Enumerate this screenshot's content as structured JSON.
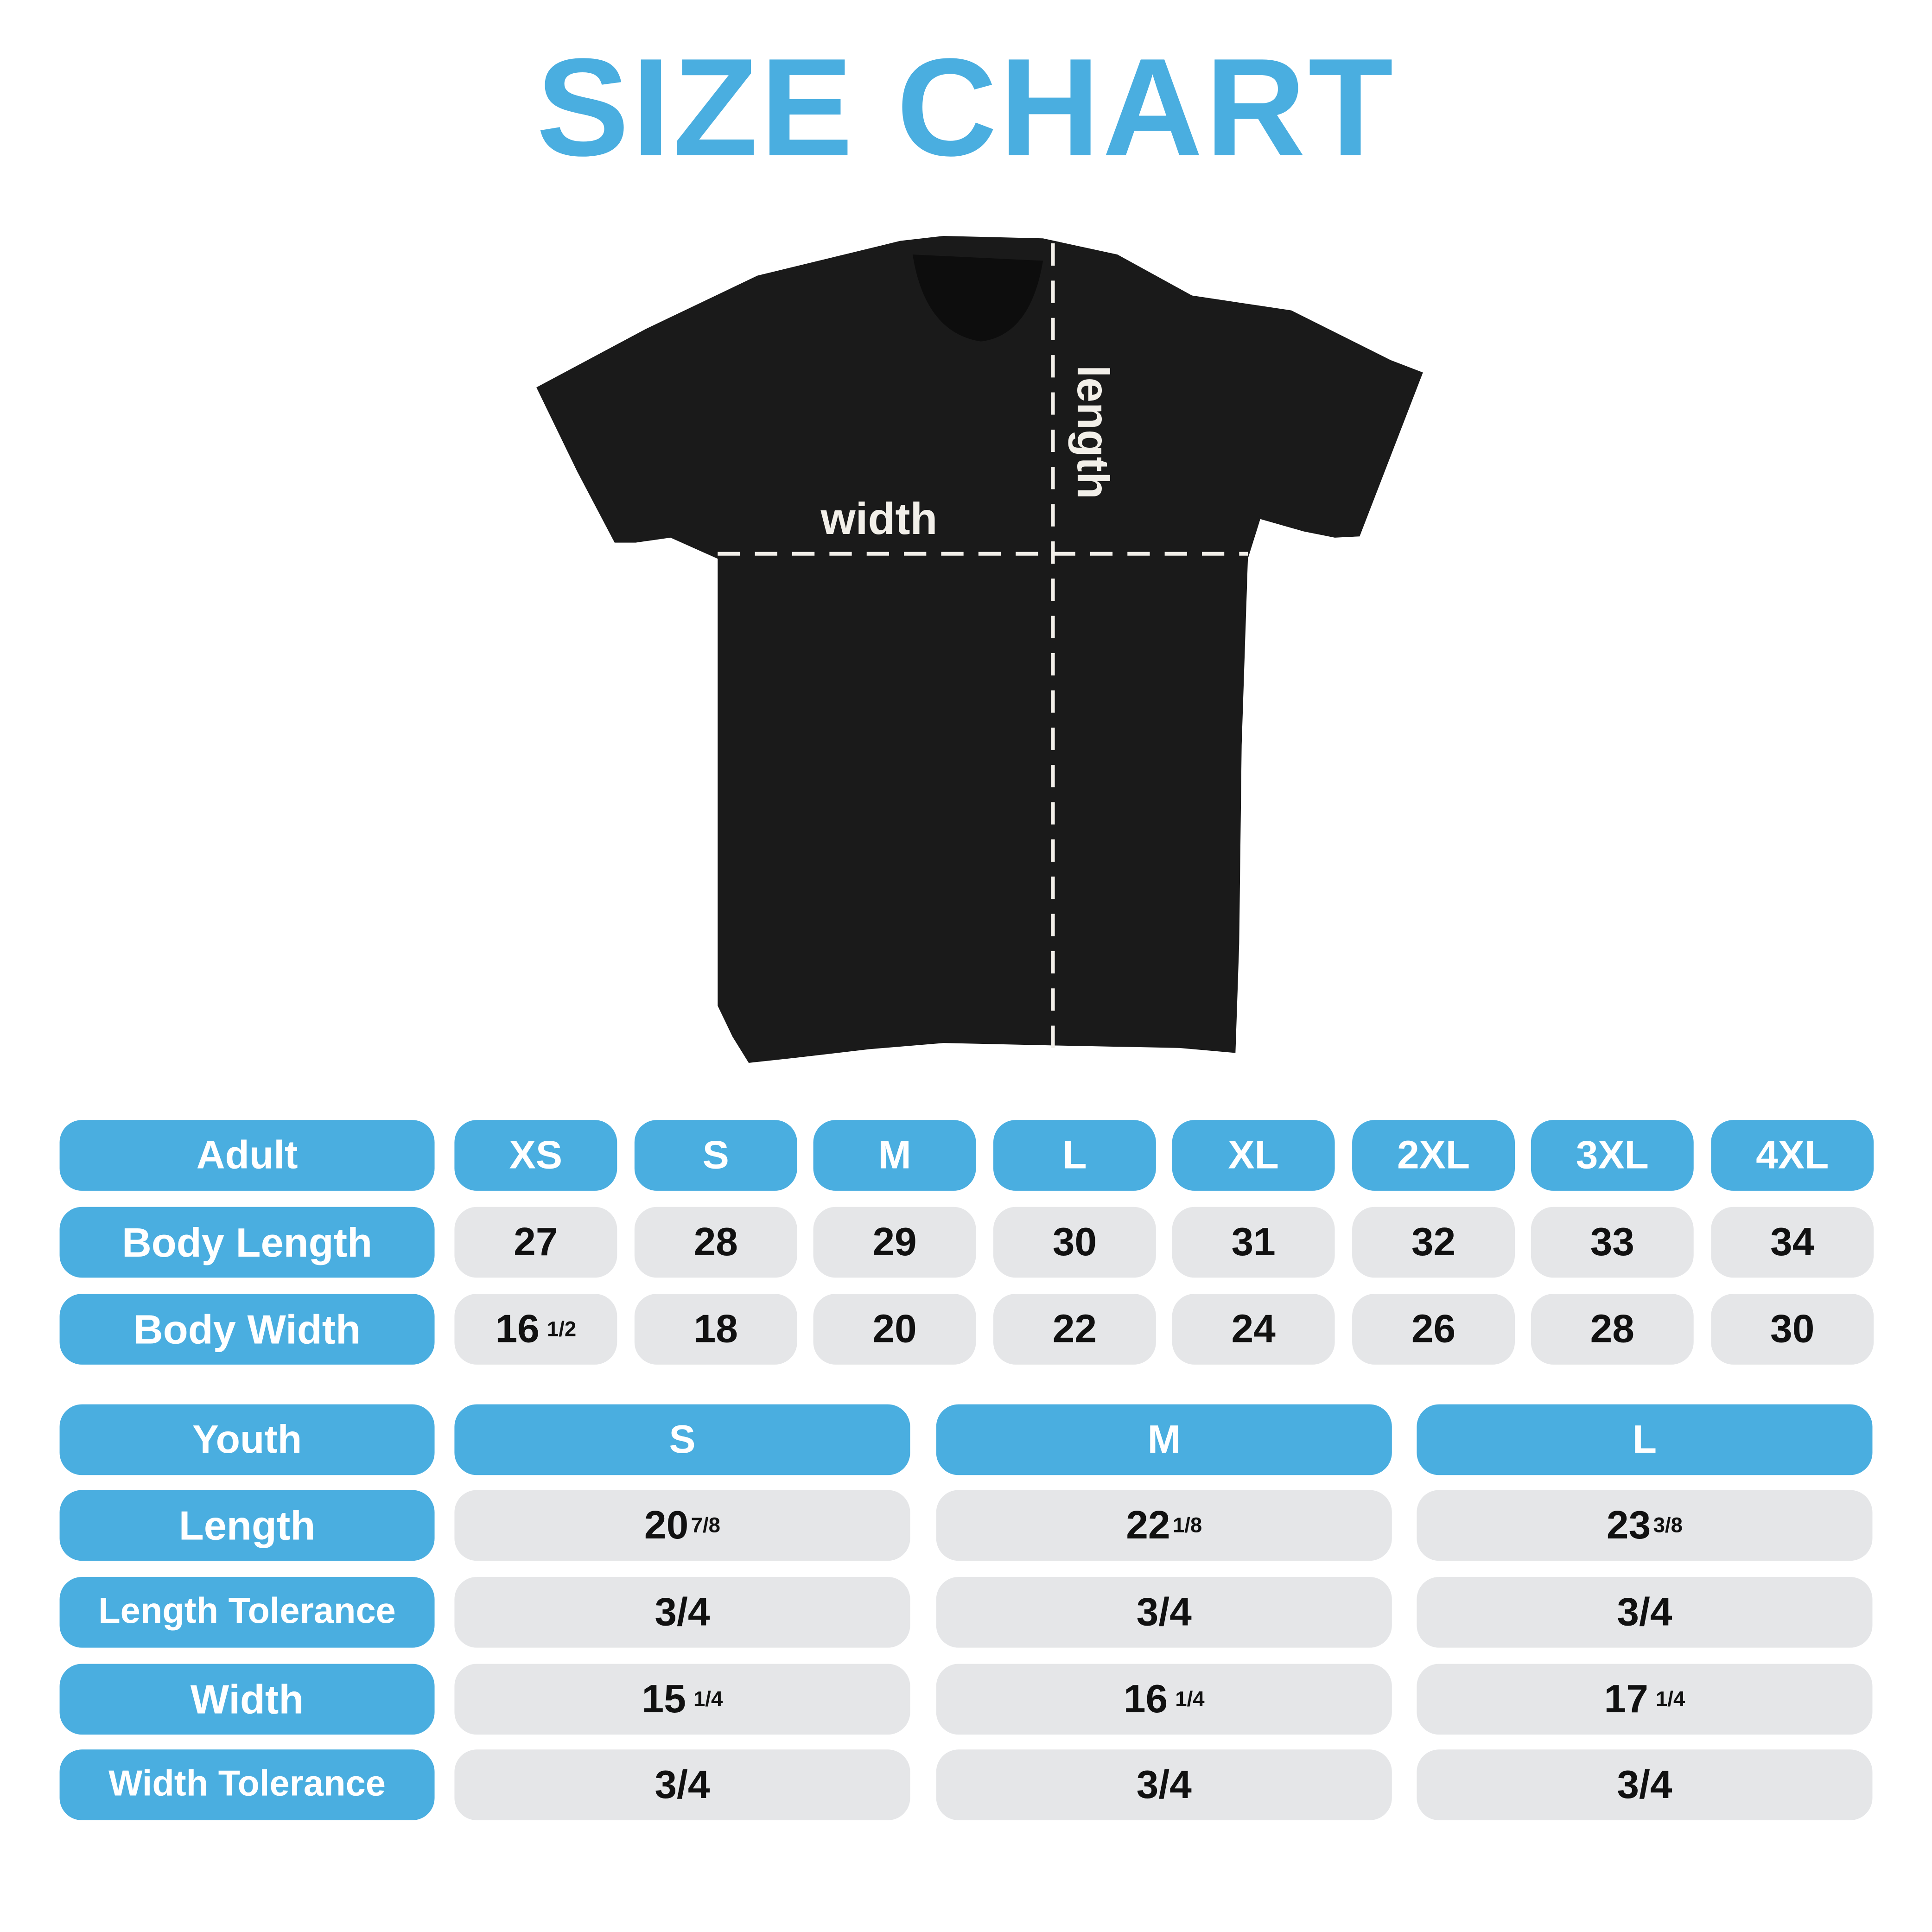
{
  "title": "SIZE CHART",
  "colors": {
    "accent": "#4aaee0",
    "cell": "#e5e6e8",
    "shirt": "#1a1a1a"
  },
  "diagram": {
    "width_label": "width",
    "length_label": "length"
  },
  "adult": {
    "header": "Adult",
    "sizes": [
      "XS",
      "S",
      "M",
      "L",
      "XL",
      "2XL",
      "3XL",
      "4XL"
    ],
    "rows": [
      {
        "label": "Body Length",
        "values": [
          {
            "n": "27"
          },
          {
            "n": "28"
          },
          {
            "n": "29"
          },
          {
            "n": "30"
          },
          {
            "n": "31"
          },
          {
            "n": "32"
          },
          {
            "n": "33"
          },
          {
            "n": "34"
          }
        ]
      },
      {
        "label": "Body Width",
        "values": [
          {
            "n": "16",
            "f": "1/2"
          },
          {
            "n": "18"
          },
          {
            "n": "20"
          },
          {
            "n": "22"
          },
          {
            "n": "24"
          },
          {
            "n": "26"
          },
          {
            "n": "28"
          },
          {
            "n": "30"
          }
        ]
      }
    ]
  },
  "youth": {
    "header": "Youth",
    "sizes": [
      "S",
      "M",
      "L"
    ],
    "rows": [
      {
        "label": "Length",
        "values": [
          {
            "n": "20",
            "f": "7/8"
          },
          {
            "n": "22",
            "f": "1/8"
          },
          {
            "n": "23",
            "f": "3/8"
          }
        ]
      },
      {
        "label": "Length Tolerance",
        "values": [
          {
            "n": "3/4"
          },
          {
            "n": "3/4"
          },
          {
            "n": "3/4"
          }
        ]
      },
      {
        "label": "Width",
        "values": [
          {
            "n": "15",
            "f": "1/4"
          },
          {
            "n": "16",
            "f": "1/4"
          },
          {
            "n": "17",
            "f": "1/4"
          }
        ]
      },
      {
        "label": "Width Tolerance",
        "values": [
          {
            "n": "3/4"
          },
          {
            "n": "3/4"
          },
          {
            "n": "3/4"
          }
        ]
      }
    ]
  }
}
